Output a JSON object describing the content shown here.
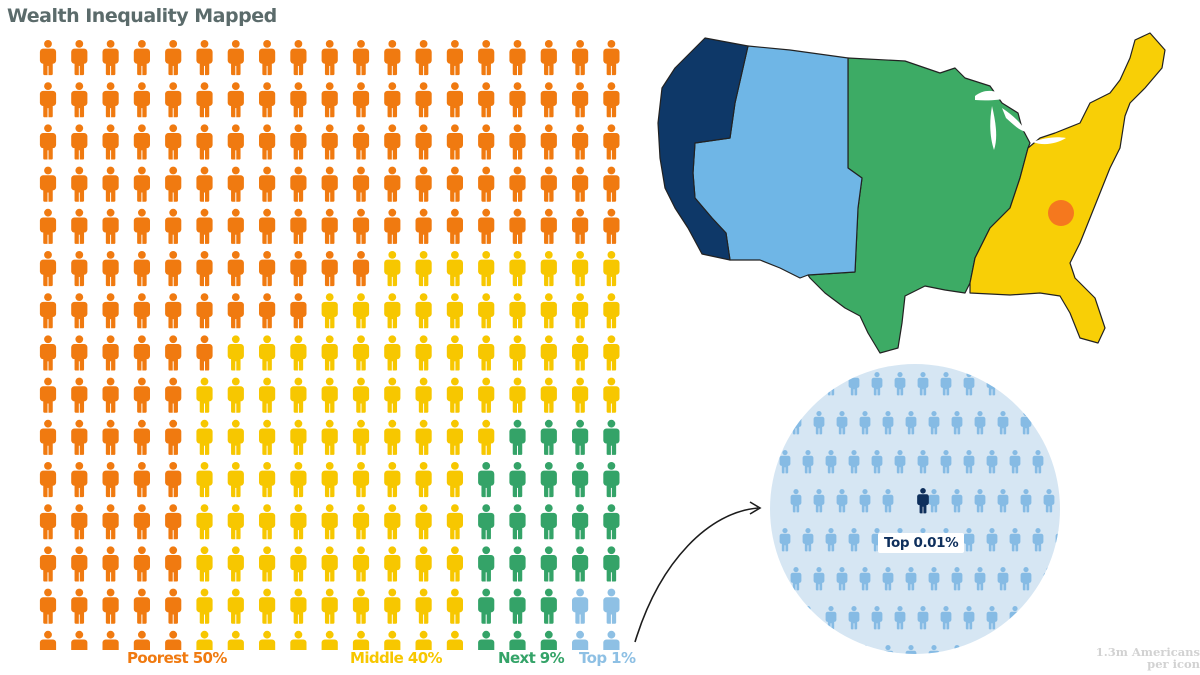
{
  "title": "Wealth Inequality Mapped",
  "colors": {
    "poorest": "#f07a10",
    "middle": "#f7c700",
    "next": "#34a368",
    "top": "#8ec0e4",
    "region_west": "#0e3868",
    "region_mountain": "#6fb6e6",
    "region_central": "#3dab65",
    "region_east": "#f8cf06",
    "marker": "#f5781e",
    "circle_bg": "#d6e6f3",
    "circle_people": "#86bbe4",
    "circle_highlight": "#0e2f5c"
  },
  "icon_grid": {
    "columns": 19,
    "rows": 15,
    "icons_by_column": [
      {
        "poorest": 15
      },
      {
        "poorest": 15
      },
      {
        "poorest": 15
      },
      {
        "poorest": 15
      },
      {
        "poorest": 15
      },
      {
        "poorest": 8,
        "middle": 7
      },
      {
        "poorest": 7,
        "middle": 8
      },
      {
        "poorest": 7,
        "middle": 8
      },
      {
        "poorest": 7,
        "middle": 8
      },
      {
        "poorest": 6,
        "middle": 9
      },
      {
        "poorest": 6,
        "middle": 9
      },
      {
        "poorest": 5,
        "middle": 10
      },
      {
        "poorest": 5,
        "middle": 10
      },
      {
        "poorest": 5,
        "middle": 10
      },
      {
        "poorest": 5,
        "middle": 5,
        "next": 5
      },
      {
        "poorest": 5,
        "middle": 4,
        "next": 6
      },
      {
        "poorest": 5,
        "middle": 4,
        "next": 6
      },
      {
        "poorest": 5,
        "middle": 4,
        "next": 6
      },
      {
        "poorest": 5,
        "middle": 4,
        "next": 6
      }
    ]
  },
  "legend": {
    "poorest": "Poorest 50%",
    "middle": "Middle 40%",
    "next": "Next 9%",
    "top": "Top 1%"
  },
  "map": {
    "regions": [
      "west",
      "mountain",
      "central",
      "east"
    ],
    "marker_region": "east"
  },
  "zoom_circle": {
    "label": "Top 0.01%",
    "icon_name": "person-icon"
  },
  "footnote": {
    "line1": "1.3m Americans",
    "line2": "per icon"
  }
}
